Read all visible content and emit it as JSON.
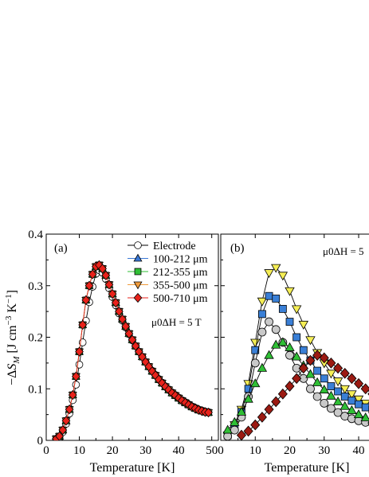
{
  "chart_data": [
    {
      "panel_label": "(a)",
      "type": "line",
      "xlabel": "Temperature [K]",
      "ylabel": "−ΔS_M [J cm^−3 K^−1]",
      "xlim": [
        0,
        52
      ],
      "ylim": [
        0,
        0.4
      ],
      "x_ticks": [
        0,
        10,
        20,
        30,
        40,
        50
      ],
      "y_ticks": [
        0,
        0.1,
        0.2,
        0.3,
        0.4
      ],
      "annotation": "μ0ΔH = 5 T",
      "legend_position": "top-right",
      "series": [
        {
          "name": "Electrode",
          "marker": "circle",
          "fill": "#ffffff",
          "x": [
            3,
            4,
            5,
            6,
            7,
            8,
            9,
            10,
            11,
            12,
            13,
            14,
            15,
            16,
            17,
            18,
            19,
            20,
            21,
            22,
            23,
            24,
            25,
            26,
            27,
            28,
            29,
            30,
            31,
            32,
            33,
            34,
            35,
            36,
            37,
            38,
            39,
            40,
            41,
            42,
            43,
            44,
            45,
            46,
            47,
            48,
            49
          ],
          "y": [
            0.002,
            0.006,
            0.016,
            0.032,
            0.052,
            0.078,
            0.108,
            0.147,
            0.19,
            0.232,
            0.268,
            0.298,
            0.323,
            0.33,
            0.325,
            0.313,
            0.295,
            0.278,
            0.262,
            0.246,
            0.232,
            0.219,
            0.206,
            0.194,
            0.183,
            0.172,
            0.162,
            0.152,
            0.143,
            0.135,
            0.127,
            0.119,
            0.112,
            0.105,
            0.099,
            0.093,
            0.088,
            0.083,
            0.078,
            0.074,
            0.07,
            0.066,
            0.063,
            0.06,
            0.058,
            0.056,
            0.055
          ]
        },
        {
          "name": "100-212 μm",
          "marker": "triangle-up",
          "fill": "#3a78d6",
          "x": [
            3,
            4,
            5,
            6,
            7,
            8,
            9,
            10,
            11,
            12,
            13,
            14,
            15,
            16,
            17,
            18,
            19,
            20,
            21,
            22,
            23,
            24,
            25,
            26,
            27,
            28,
            29,
            30,
            31,
            32,
            33,
            34,
            35,
            36,
            37,
            38,
            39,
            40,
            41,
            42,
            43,
            44,
            45,
            46,
            47,
            48,
            49
          ],
          "y": [
            0.003,
            0.008,
            0.02,
            0.038,
            0.06,
            0.088,
            0.124,
            0.172,
            0.224,
            0.272,
            0.3,
            0.322,
            0.337,
            0.34,
            0.333,
            0.32,
            0.302,
            0.284,
            0.267,
            0.25,
            0.235,
            0.221,
            0.207,
            0.195,
            0.183,
            0.172,
            0.162,
            0.152,
            0.143,
            0.134,
            0.126,
            0.118,
            0.111,
            0.104,
            0.098,
            0.092,
            0.087,
            0.082,
            0.077,
            0.073,
            0.069,
            0.065,
            0.062,
            0.059,
            0.057,
            0.055,
            0.054
          ]
        },
        {
          "name": "212-355 μm",
          "marker": "square",
          "fill": "#2fbf35",
          "x": [
            3,
            4,
            5,
            6,
            7,
            8,
            9,
            10,
            11,
            12,
            13,
            14,
            15,
            16,
            17,
            18,
            19,
            20,
            21,
            22,
            23,
            24,
            25,
            26,
            27,
            28,
            29,
            30,
            31,
            32,
            33,
            34,
            35,
            36,
            37,
            38,
            39,
            40,
            41,
            42,
            43,
            44,
            45,
            46,
            47,
            48,
            49
          ],
          "y": [
            0.003,
            0.008,
            0.02,
            0.038,
            0.06,
            0.088,
            0.124,
            0.172,
            0.224,
            0.272,
            0.3,
            0.322,
            0.337,
            0.34,
            0.333,
            0.32,
            0.302,
            0.284,
            0.267,
            0.25,
            0.235,
            0.221,
            0.207,
            0.195,
            0.183,
            0.172,
            0.162,
            0.152,
            0.143,
            0.134,
            0.126,
            0.118,
            0.111,
            0.104,
            0.098,
            0.092,
            0.087,
            0.082,
            0.077,
            0.073,
            0.069,
            0.065,
            0.062,
            0.059,
            0.057,
            0.055,
            0.054
          ]
        },
        {
          "name": "355-500 μm",
          "marker": "triangle-down",
          "fill": "#f09a3a",
          "x": [
            3,
            4,
            5,
            6,
            7,
            8,
            9,
            10,
            11,
            12,
            13,
            14,
            15,
            16,
            17,
            18,
            19,
            20,
            21,
            22,
            23,
            24,
            25,
            26,
            27,
            28,
            29,
            30,
            31,
            32,
            33,
            34,
            35,
            36,
            37,
            38,
            39,
            40,
            41,
            42,
            43,
            44,
            45,
            46,
            47,
            48,
            49
          ],
          "y": [
            0.003,
            0.008,
            0.02,
            0.038,
            0.06,
            0.088,
            0.124,
            0.172,
            0.224,
            0.272,
            0.3,
            0.322,
            0.337,
            0.34,
            0.333,
            0.32,
            0.302,
            0.284,
            0.267,
            0.25,
            0.235,
            0.221,
            0.207,
            0.195,
            0.183,
            0.172,
            0.162,
            0.152,
            0.143,
            0.134,
            0.126,
            0.118,
            0.111,
            0.104,
            0.098,
            0.092,
            0.087,
            0.082,
            0.077,
            0.073,
            0.069,
            0.065,
            0.062,
            0.059,
            0.057,
            0.055,
            0.054
          ]
        },
        {
          "name": "500-710 μm",
          "marker": "diamond",
          "fill": "#e8231b",
          "x": [
            3,
            4,
            5,
            6,
            7,
            8,
            9,
            10,
            11,
            12,
            13,
            14,
            15,
            16,
            17,
            18,
            19,
            20,
            21,
            22,
            23,
            24,
            25,
            26,
            27,
            28,
            29,
            30,
            31,
            32,
            33,
            34,
            35,
            36,
            37,
            38,
            39,
            40,
            41,
            42,
            43,
            44,
            45,
            46,
            47,
            48,
            49
          ],
          "y": [
            0.003,
            0.008,
            0.02,
            0.038,
            0.06,
            0.088,
            0.124,
            0.172,
            0.224,
            0.272,
            0.3,
            0.322,
            0.337,
            0.34,
            0.333,
            0.32,
            0.302,
            0.284,
            0.267,
            0.25,
            0.235,
            0.221,
            0.207,
            0.195,
            0.183,
            0.172,
            0.162,
            0.152,
            0.143,
            0.134,
            0.126,
            0.118,
            0.111,
            0.104,
            0.098,
            0.092,
            0.087,
            0.082,
            0.077,
            0.073,
            0.069,
            0.065,
            0.062,
            0.059,
            0.057,
            0.055,
            0.054
          ]
        }
      ]
    },
    {
      "panel_label": "(b)",
      "type": "line",
      "xlabel": "Temperature [K]",
      "xlim": [
        0,
        43
      ],
      "ylim": [
        0,
        0.4
      ],
      "x_ticks": [
        0,
        10,
        20,
        30,
        40
      ],
      "annotation": "μ0ΔH = 5",
      "series": [
        {
          "marker": "triangle-down",
          "fill": "#f5ee55",
          "x": [
            2,
            4,
            6,
            8,
            10,
            12,
            14,
            16,
            18,
            20,
            22,
            24,
            26,
            28,
            30,
            32,
            34,
            36,
            38,
            40,
            42,
            44
          ],
          "y": [
            0.01,
            0.03,
            0.06,
            0.11,
            0.19,
            0.27,
            0.325,
            0.335,
            0.32,
            0.29,
            0.255,
            0.225,
            0.195,
            0.17,
            0.15,
            0.13,
            0.115,
            0.1,
            0.09,
            0.08,
            0.072,
            0.065
          ]
        },
        {
          "marker": "square",
          "fill": "#3a7fd6",
          "x": [
            2,
            4,
            6,
            8,
            10,
            12,
            14,
            16,
            18,
            20,
            22,
            24,
            26,
            28,
            30,
            32,
            34,
            36,
            38,
            40,
            42,
            44
          ],
          "y": [
            0.01,
            0.025,
            0.055,
            0.1,
            0.175,
            0.245,
            0.28,
            0.275,
            0.255,
            0.23,
            0.2,
            0.175,
            0.155,
            0.135,
            0.12,
            0.105,
            0.095,
            0.085,
            0.077,
            0.07,
            0.064,
            0.06
          ]
        },
        {
          "marker": "circle",
          "fill": "#c9c9c9",
          "x": [
            2,
            4,
            6,
            8,
            10,
            12,
            14,
            16,
            18,
            20,
            22,
            24,
            26,
            28,
            30,
            32,
            34,
            36,
            38,
            40,
            42,
            44
          ],
          "y": [
            0.008,
            0.02,
            0.045,
            0.085,
            0.15,
            0.21,
            0.23,
            0.215,
            0.19,
            0.165,
            0.14,
            0.12,
            0.1,
            0.085,
            0.072,
            0.062,
            0.054,
            0.047,
            0.042,
            0.038,
            0.035,
            0.033
          ]
        },
        {
          "marker": "triangle-up",
          "fill": "#2fbf35",
          "x": [
            2,
            4,
            6,
            8,
            10,
            12,
            14,
            16,
            18,
            20,
            22,
            24,
            26,
            28,
            30,
            32,
            34,
            36,
            38,
            40,
            42,
            44
          ],
          "y": [
            0.02,
            0.035,
            0.055,
            0.08,
            0.11,
            0.14,
            0.165,
            0.185,
            0.19,
            0.18,
            0.162,
            0.145,
            0.128,
            0.112,
            0.098,
            0.086,
            0.075,
            0.066,
            0.058,
            0.05,
            0.044,
            0.04
          ]
        },
        {
          "marker": "diamond",
          "fill": "#9b1a12",
          "x": [
            6,
            8,
            10,
            12,
            14,
            16,
            18,
            20,
            22,
            24,
            26,
            28,
            30,
            32,
            34,
            36,
            38,
            40,
            42,
            44
          ],
          "y": [
            0.01,
            0.018,
            0.03,
            0.045,
            0.06,
            0.075,
            0.09,
            0.105,
            0.12,
            0.14,
            0.155,
            0.165,
            0.16,
            0.15,
            0.14,
            0.13,
            0.12,
            0.11,
            0.1,
            0.09
          ]
        }
      ]
    }
  ]
}
